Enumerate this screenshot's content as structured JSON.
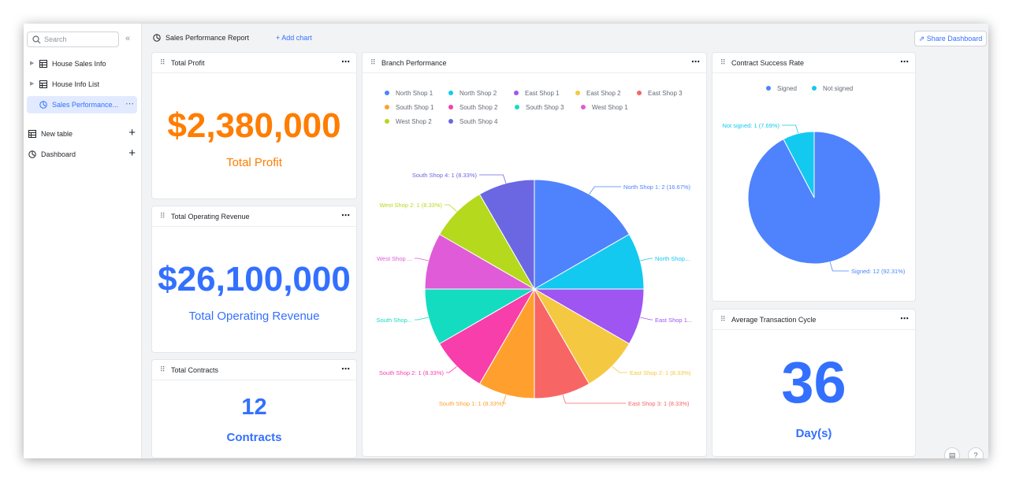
{
  "sidebar": {
    "search_placeholder": "Search",
    "collapse_icon": "double-chevron-left-icon",
    "items": [
      {
        "label": "House Sales Info",
        "icon": "table-icon"
      },
      {
        "label": "House Info List",
        "icon": "table-icon"
      },
      {
        "label": "Sales Performance...",
        "icon": "dashboard-icon",
        "active": true
      }
    ],
    "sections": [
      {
        "label": "New table",
        "icon": "table-icon"
      },
      {
        "label": "Dashboard",
        "icon": "dashboard-icon"
      }
    ]
  },
  "topbar": {
    "title": "Sales Performance Report",
    "add_chart": "+ Add chart",
    "share": "Share Dashboard"
  },
  "cards": {
    "total_profit": {
      "title": "Total Profit",
      "value": "$2,380,000",
      "label": "Total Profit",
      "color": "#ff7d00"
    },
    "total_revenue": {
      "title": "Total Operating Revenue",
      "value": "$26,100,000",
      "label": "Total Operating Revenue",
      "color": "#3370ff"
    },
    "total_contracts": {
      "title": "Total Contracts",
      "value": "12",
      "label": "Contracts",
      "color": "#3370ff"
    },
    "branch": {
      "title": "Branch Performance"
    },
    "contract_rate": {
      "title": "Contract Success Rate"
    },
    "avg_cycle": {
      "title": "Average Transaction Cycle",
      "value": "36",
      "label": "Day(s)",
      "color": "#3370ff"
    }
  },
  "chart_data": [
    {
      "type": "pie",
      "title": "Branch Performance",
      "legend": "top",
      "slices": [
        {
          "name": "North Shop 1",
          "value": 2,
          "color": "#4e83fd",
          "label": "North Shop 1: 2 (16.67%)"
        },
        {
          "name": "North Shop 2",
          "value": 1,
          "color": "#14c9ef",
          "label": "North Shop..."
        },
        {
          "name": "East Shop 1",
          "value": 1,
          "color": "#9e55f2",
          "label": "East Shop 1..."
        },
        {
          "name": "East Shop 2",
          "value": 1,
          "color": "#f5c842",
          "label": "East Shop 2: 1 (8.33%)"
        },
        {
          "name": "East Shop 3",
          "value": 1,
          "color": "#f76565",
          "label": "East Shop 3: 1 (8.33%)"
        },
        {
          "name": "South Shop 1",
          "value": 1,
          "color": "#ffa02e",
          "label": "South Shop 1: 1 (8.33%)"
        },
        {
          "name": "South Shop 2",
          "value": 1,
          "color": "#f73eaa",
          "label": "South Shop 2: 1 (8.33%)"
        },
        {
          "name": "South Shop 3",
          "value": 1,
          "color": "#14dcc0",
          "label": "South Shop..."
        },
        {
          "name": "West Shop 1",
          "value": 1,
          "color": "#e05bd8",
          "label": "West Shop ..."
        },
        {
          "name": "West Shop 2",
          "value": 1,
          "color": "#b5d91c",
          "label": "West Shop 2: 1 (8.33%)"
        },
        {
          "name": "South Shop 4",
          "value": 1,
          "color": "#6b67e2",
          "label": "South Shop 4: 1 (8.33%)"
        }
      ]
    },
    {
      "type": "pie",
      "title": "Contract Success Rate",
      "legend": "top",
      "slices": [
        {
          "name": "Signed",
          "value": 12,
          "color": "#4e83fd",
          "label": "Signed: 12 (92.31%)"
        },
        {
          "name": "Not signed",
          "value": 1,
          "color": "#14c9ef",
          "label": "Not signed: 1 (7.69%)"
        }
      ]
    }
  ],
  "footer": {
    "doc_icon": "document-icon",
    "help_icon": "question-icon",
    "help_glyph": "?"
  }
}
